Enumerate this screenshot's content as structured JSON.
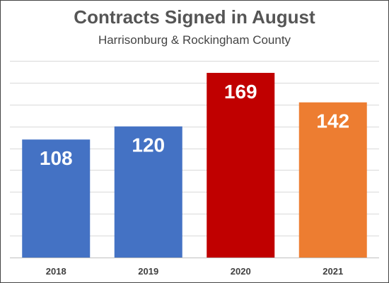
{
  "chart_data": {
    "type": "bar",
    "title": "Contracts Signed in August",
    "subtitle": "Harrisonburg & Rockingham County",
    "categories": [
      "2018",
      "2019",
      "2020",
      "2021"
    ],
    "values": [
      108,
      120,
      169,
      142
    ],
    "colors": [
      "#4472c4",
      "#4472c4",
      "#c00000",
      "#ed7d31"
    ],
    "data_labels": true,
    "ylim": [
      0,
      180
    ],
    "y_grid_step": 20,
    "grid": true,
    "legend": "none",
    "xlabel": "",
    "ylabel": ""
  }
}
